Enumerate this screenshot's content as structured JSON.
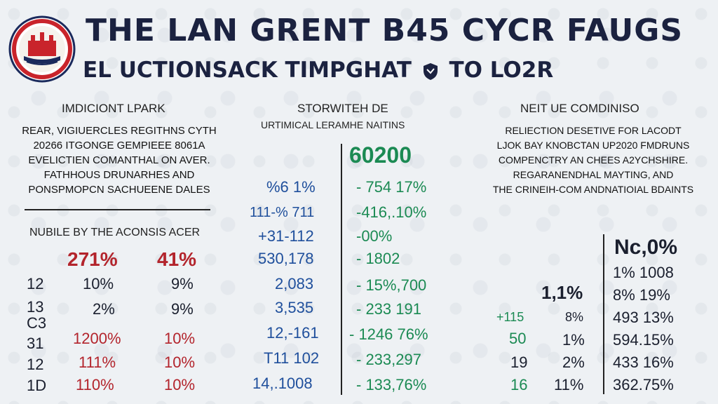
{
  "header": {
    "title": "THE LAN GRENT B45 CYCR FAUGS",
    "subtitle_pre": "EL UCTIONSACK TIMPGHAT",
    "subtitle_post": "TO LO2R"
  },
  "left": {
    "heading": "IMDICIONT LPARK",
    "desc": [
      "REAR, VIGIUERCLES REGITHNS CYTH",
      "20266 ITGONGE GEMPIEEE 8061A",
      "EVELICTIEN COMANTHAL ON AVER.",
      "FATHHOUS DRUNARHES AND",
      "PONSPMOPCN SACHUEENE DALES"
    ],
    "table_label": "NUBILE BY THE ACONSIS ACER",
    "col_heads": [
      "271%",
      "41%"
    ],
    "rows": [
      [
        "12",
        "10%",
        "9%"
      ],
      [
        "13",
        "2%",
        "9%"
      ],
      [
        "C3",
        "",
        ""
      ],
      [
        "31",
        "1200%",
        "10%"
      ],
      [
        "12",
        "111%",
        "10%"
      ],
      [
        "1D",
        "110%",
        "10%"
      ]
    ]
  },
  "middle": {
    "heading": "STORWITEH DE",
    "subheading": "URTIMICAL LERAMHE NAITINS",
    "big_value": "60200",
    "rows": [
      [
        "%6 1%",
        "- 754 17%"
      ],
      [
        "111-% 711",
        "-416,.10%"
      ],
      [
        "+31-112",
        "-00%"
      ],
      [
        "530,178",
        "- 1802"
      ],
      [
        "2,083",
        "- 15%,700"
      ],
      [
        "3,535",
        "- 233 191"
      ],
      [
        "12,-161",
        "- 1246 76%"
      ],
      [
        "T11 102",
        "- 233,297"
      ],
      [
        "14,.1008",
        "- 133,76%"
      ]
    ]
  },
  "right": {
    "heading": "NEIT UE COMDINISO",
    "desc": [
      "RELIECTION DESETIVE FOR LACODT",
      "LJOK BAY KNOBCTAN UP2020 FMDRUNS",
      "COMPENCTRY AN CHEES A2YCHSHIRE.",
      "REGARANENDHAL MAYTING, AND",
      "THE CRINEIH-COM ANDNATIOIAL BDAINTS"
    ],
    "col_head": "Nc,0%",
    "mid_head": "1,1%",
    "right_rows": [
      "1% 1008",
      "8% 19%",
      "493 13%",
      "594.15%",
      "433 16%",
      "362.75%"
    ],
    "left_rows": [
      [
        "+115",
        "8%"
      ],
      [
        "50",
        "1%"
      ],
      [
        "19",
        "2%"
      ],
      [
        "16",
        "11%"
      ]
    ]
  },
  "colors": {
    "title": "#1b2240",
    "red": "#b3242c",
    "blue": "#1f4f9c",
    "green": "#1b8a53"
  }
}
